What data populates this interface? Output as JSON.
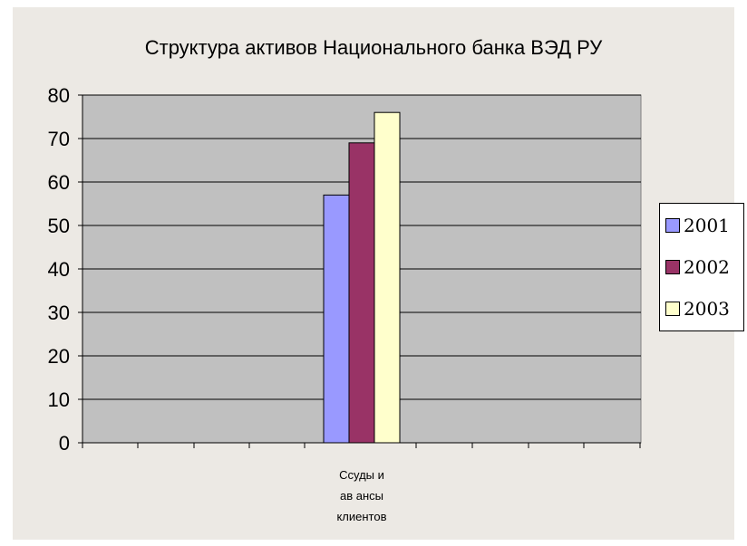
{
  "chart_data": {
    "type": "bar",
    "title": "Структура активов Национального банка ВЭД РУ",
    "categories": [
      "Ссуды и авансы клиентов"
    ],
    "category_label_lines": [
      "Ссуды и",
      "ав ансы",
      "клиентов"
    ],
    "series": [
      {
        "name": "2001",
        "values": [
          57
        ],
        "color": "#9999FF"
      },
      {
        "name": "2002",
        "values": [
          69
        ],
        "color": "#993366"
      },
      {
        "name": "2003",
        "values": [
          76
        ],
        "color": "#FFFFCC"
      }
    ],
    "ylim": [
      0,
      80
    ],
    "yticks": [
      "0",
      "10",
      "20",
      "30",
      "40",
      "50",
      "60",
      "70",
      "80"
    ],
    "grid": true,
    "plot_background": "#C0C0C0",
    "chart_background": "#ECE9E4",
    "legend_position": "right"
  }
}
